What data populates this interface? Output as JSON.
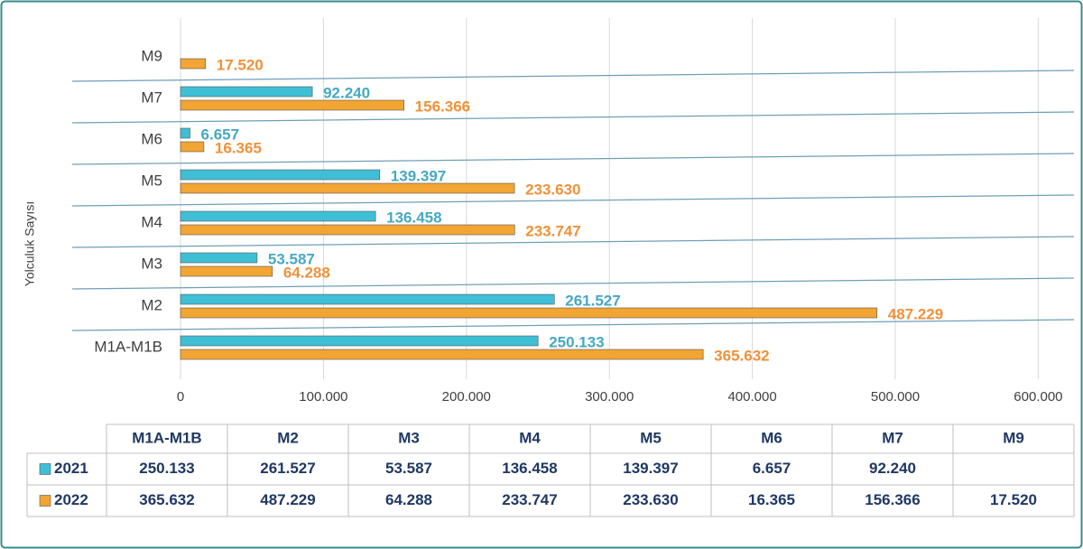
{
  "chart_data": {
    "type": "bar",
    "orientation": "horizontal",
    "y_axis_label": "Yolculuk Sayısı",
    "categories": [
      "M1A-M1B",
      "M2",
      "M3",
      "M4",
      "M5",
      "M6",
      "M7",
      "M9"
    ],
    "series": [
      {
        "name": "2021",
        "color": "#3fbfd6",
        "label_color": "#46a8c4",
        "values": [
          250133,
          261527,
          53587,
          136458,
          139397,
          6657,
          92240,
          null
        ],
        "value_labels": [
          "250.133",
          "261.527",
          "53.587",
          "136.458",
          "139.397",
          "6.657",
          "92.240",
          null
        ]
      },
      {
        "name": "2022",
        "color": "#f2a533",
        "label_color": "#f0913a",
        "values": [
          365632,
          487229,
          64288,
          233747,
          233630,
          16365,
          156366,
          17520
        ],
        "value_labels": [
          "365.632",
          "487.229",
          "64.288",
          "233.747",
          "233.630",
          "16.365",
          "156.366",
          "17.520"
        ]
      }
    ],
    "xlim": [
      0,
      625000
    ],
    "xticks": [
      0,
      {
        "value": 100000,
        "label": "100.000"
      },
      {
        "value": 200000,
        "label": "200.000"
      },
      {
        "value": 300000,
        "label": "300.000"
      },
      {
        "value": 400000,
        "label": "400.000"
      },
      {
        "value": 500000,
        "label": "500.000"
      },
      {
        "value": 600000,
        "label": "600.000"
      }
    ],
    "grid": true
  }
}
